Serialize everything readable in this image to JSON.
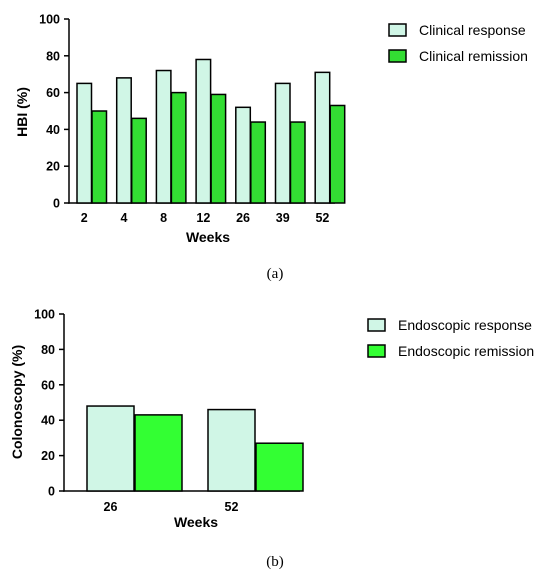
{
  "chart_data": [
    {
      "type": "bar",
      "panel_label": "(a)",
      "categories": [
        "2",
        "4",
        "8",
        "12",
        "26",
        "39",
        "52"
      ],
      "series": [
        {
          "name": "Clinical response",
          "values": [
            65,
            68,
            72,
            78,
            52,
            65,
            71
          ],
          "color": "#d0f6e6"
        },
        {
          "name": "Clinical remission",
          "values": [
            50,
            46,
            60,
            59,
            44,
            44,
            53
          ],
          "color": "#33dd33"
        }
      ],
      "xlabel": "Weeks",
      "ylabel": "HBI (%)",
      "ylim": [
        0,
        100
      ],
      "yticks": [
        "0",
        "20",
        "40",
        "60",
        "80",
        "100"
      ],
      "grid": false,
      "legend": "top-right"
    },
    {
      "type": "bar",
      "panel_label": "(b)",
      "categories": [
        "26",
        "52"
      ],
      "series": [
        {
          "name": "Endoscopic response",
          "values": [
            48,
            46
          ],
          "color": "#d0f6e6"
        },
        {
          "name": "Endoscopic remission",
          "values": [
            43,
            27
          ],
          "color": "#33ff33"
        }
      ],
      "xlabel": "Weeks",
      "ylabel": "Colonoscopy (%)",
      "ylim": [
        0,
        100
      ],
      "yticks": [
        "0",
        "20",
        "40",
        "60",
        "80",
        "100"
      ],
      "grid": false,
      "legend": "top-right"
    }
  ]
}
